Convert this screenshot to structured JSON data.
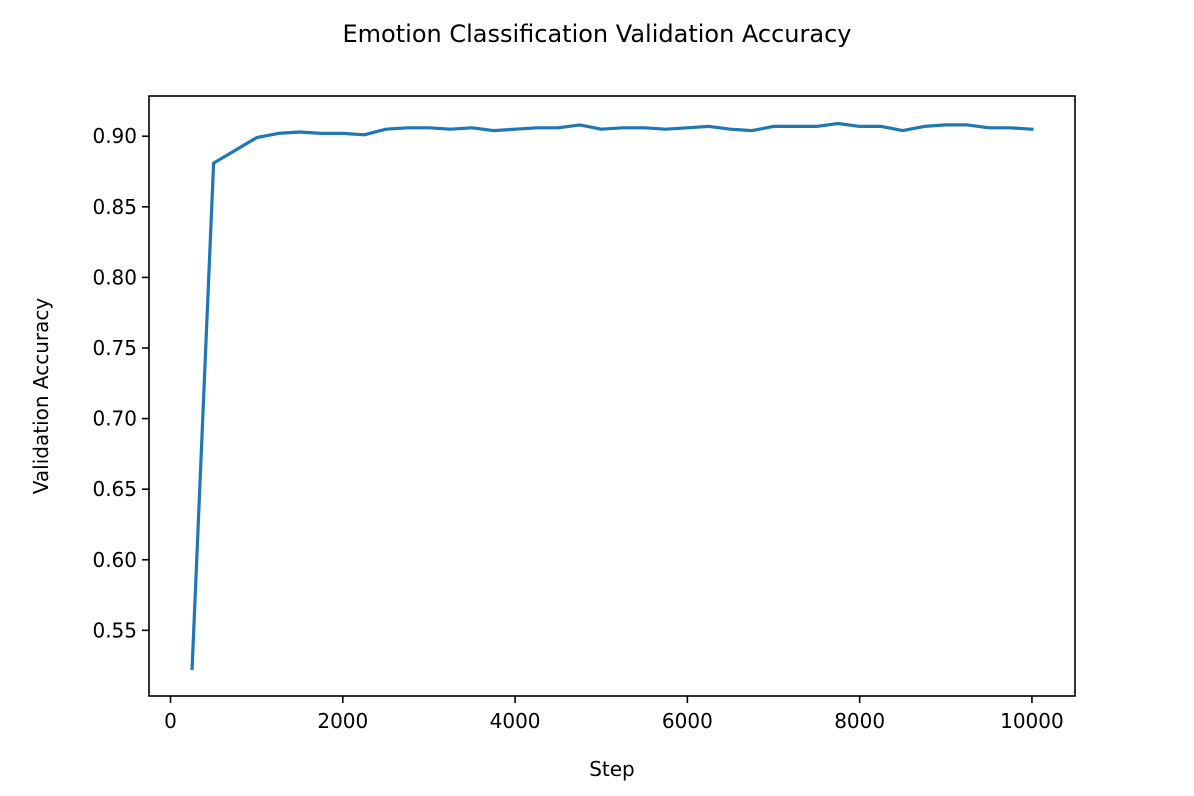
{
  "chart_data": {
    "type": "line",
    "title": "Emotion Classification Validation Accuracy",
    "xlabel": "Step",
    "ylabel": "Validation Accuracy",
    "xlim": [
      -250,
      10500
    ],
    "ylim": [
      0.5035,
      0.9285
    ],
    "xticks": [
      0,
      2000,
      4000,
      6000,
      8000,
      10000
    ],
    "yticks": [
      0.55,
      0.6,
      0.65,
      0.7,
      0.75,
      0.8,
      0.85,
      0.9
    ],
    "xtick_labels": [
      "0",
      "2000",
      "4000",
      "6000",
      "8000",
      "10000"
    ],
    "ytick_labels": [
      "0.55",
      "0.60",
      "0.65",
      "0.70",
      "0.75",
      "0.80",
      "0.85",
      "0.90"
    ],
    "grid": false,
    "series": [
      {
        "color": "#1f77b4",
        "x": [
          250,
          500,
          750,
          1000,
          1250,
          1500,
          1750,
          2000,
          2250,
          2500,
          2750,
          3000,
          3250,
          3500,
          3750,
          4000,
          4250,
          4500,
          4750,
          5000,
          5250,
          5500,
          5750,
          6000,
          6250,
          6500,
          6750,
          7000,
          7250,
          7500,
          7750,
          8000,
          8250,
          8500,
          8750,
          9000,
          9250,
          9500,
          9750,
          10000
        ],
        "y": [
          0.523,
          0.881,
          0.89,
          0.899,
          0.902,
          0.903,
          0.902,
          0.902,
          0.901,
          0.905,
          0.906,
          0.906,
          0.905,
          0.906,
          0.904,
          0.905,
          0.906,
          0.906,
          0.908,
          0.905,
          0.906,
          0.906,
          0.905,
          0.906,
          0.907,
          0.905,
          0.904,
          0.907,
          0.907,
          0.907,
          0.909,
          0.907,
          0.907,
          0.904,
          0.907,
          0.908,
          0.908,
          0.906,
          0.906,
          0.905
        ]
      }
    ]
  }
}
